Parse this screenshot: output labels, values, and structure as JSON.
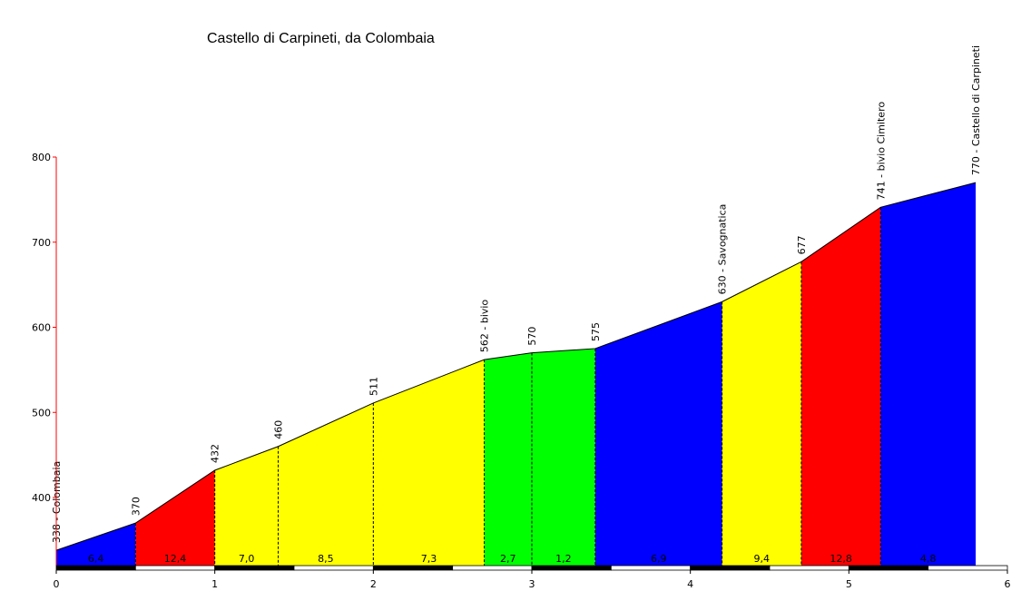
{
  "chart_data": {
    "type": "area",
    "title": "Castello di Carpineti, da Colombaia",
    "xlabel": "",
    "ylabel": "",
    "xlim": [
      0,
      6
    ],
    "ylim": [
      320,
      800
    ],
    "x_ticks": [
      "0",
      "1",
      "2",
      "3",
      "4",
      "5",
      "6"
    ],
    "y_ticks": [
      "400",
      "500",
      "600",
      "700",
      "800"
    ],
    "points": [
      {
        "x": 0.0,
        "y": 338,
        "label": "338 - Colombaia"
      },
      {
        "x": 0.5,
        "y": 370,
        "label": "370"
      },
      {
        "x": 1.0,
        "y": 432,
        "label": "432"
      },
      {
        "x": 1.4,
        "y": 460,
        "label": "460"
      },
      {
        "x": 2.0,
        "y": 511,
        "label": "511"
      },
      {
        "x": 2.7,
        "y": 562,
        "label": "562 - bivio"
      },
      {
        "x": 3.0,
        "y": 570,
        "label": "570"
      },
      {
        "x": 3.4,
        "y": 575,
        "label": "575"
      },
      {
        "x": 4.2,
        "y": 630,
        "label": "630 - Savognatica"
      },
      {
        "x": 4.7,
        "y": 677,
        "label": "677"
      },
      {
        "x": 5.2,
        "y": 741,
        "label": "741 - bivio Cimitero"
      },
      {
        "x": 5.8,
        "y": 770,
        "label": "770 - Castello di Carpineti"
      }
    ],
    "segments": [
      {
        "gradient": "6,4",
        "color": "#0000ff"
      },
      {
        "gradient": "12,4",
        "color": "#ff0000"
      },
      {
        "gradient": "7,0",
        "color": "#ffff00"
      },
      {
        "gradient": "8,5",
        "color": "#ffff00"
      },
      {
        "gradient": "7,3",
        "color": "#ffff00"
      },
      {
        "gradient": "2,7",
        "color": "#00ff00"
      },
      {
        "gradient": "1,2",
        "color": "#00ff00"
      },
      {
        "gradient": "6,9",
        "color": "#0000ff"
      },
      {
        "gradient": "9,4",
        "color": "#ffff00"
      },
      {
        "gradient": "12,8",
        "color": "#ff0000"
      },
      {
        "gradient": "4,8",
        "color": "#0000ff"
      }
    ]
  }
}
